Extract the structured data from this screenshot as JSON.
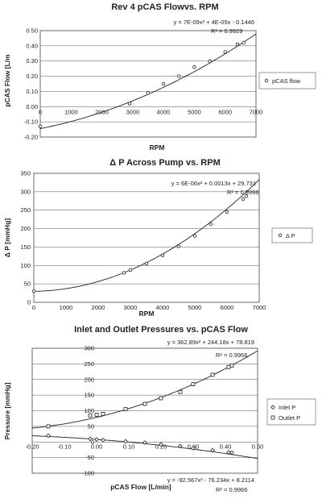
{
  "chart_data": [
    {
      "type": "scatter",
      "title": "Rev 4 pCAS Flowvs. RPM",
      "xlabel": "RPM",
      "ylabel": "pCAS Flow [L/m",
      "xlim": [
        0,
        7000
      ],
      "ylim": [
        -0.2,
        0.5
      ],
      "xticks": [
        "0",
        "1000",
        "2000",
        "3000",
        "4000",
        "5000",
        "6000",
        "7000"
      ],
      "yticks": [
        "0.50",
        "0.40",
        "0.30",
        "0.20",
        "0.10",
        "0.00",
        "-0.10",
        "-0.20"
      ],
      "grid": true,
      "legend_position": "right",
      "trendline": {
        "a": 7e-09,
        "b": 4e-05,
        "c": -0.1446
      },
      "equation": "y = 7E-09x² + 4E-05x - 0.1446",
      "r2": "R² = 0.9929",
      "series": [
        {
          "name": "pCAS flow",
          "marker": "circle",
          "x": [
            0,
            2900,
            3500,
            4000,
            4500,
            5000,
            5500,
            6000,
            6400,
            6600
          ],
          "y": [
            -0.13,
            0.02,
            0.09,
            0.15,
            0.2,
            0.26,
            0.3,
            0.36,
            0.41,
            0.42
          ]
        }
      ]
    },
    {
      "type": "scatter",
      "title": "Δ P Across Pump vs. RPM",
      "xlabel": "RPM",
      "ylabel": "Δ P [mmHg]",
      "xlim": [
        0,
        7000
      ],
      "ylim": [
        0,
        350
      ],
      "xticks": [
        "0",
        "1000",
        "2000",
        "3000",
        "4000",
        "5000",
        "6000",
        "7000"
      ],
      "yticks": [
        "350",
        "300",
        "250",
        "200",
        "150",
        "100",
        "50",
        "0"
      ],
      "grid": true,
      "legend_position": "right",
      "trendline": {
        "a": 6e-06,
        "b": 0.0013,
        "c": 29.731
      },
      "equation": "y = 6E-06x² + 0.0013x + 29.731",
      "r2": "R² = 0.9998",
      "series": [
        {
          "name": "Δ P",
          "marker": "circle",
          "x": [
            0,
            2800,
            3000,
            3500,
            4000,
            4500,
            5000,
            5500,
            6000,
            6500,
            6600
          ],
          "y": [
            30,
            80,
            88,
            105,
            127,
            152,
            180,
            212,
            245,
            280,
            288
          ]
        }
      ]
    },
    {
      "type": "scatter",
      "title": "Inlet and Outlet Pressures vs. pCAS Flow",
      "xlabel": "pCAS Flow [L/min]",
      "ylabel": "Pressure [mmHg]",
      "xlim": [
        -0.2,
        0.5
      ],
      "ylim": [
        -100,
        300
      ],
      "xticks": [
        "-0.20",
        "-0.10",
        "0.00",
        "0.10",
        "0.20",
        "0.30",
        "0.40",
        "0.50"
      ],
      "yticks": [
        "300",
        "250",
        "200",
        "150",
        "100",
        "50",
        "0",
        "-50",
        "-100"
      ],
      "grid": true,
      "legend_position": "right",
      "series": [
        {
          "name": "Inlet P",
          "marker": "diamond",
          "x": [
            -0.15,
            -0.02,
            0.0,
            0.02,
            0.09,
            0.15,
            0.2,
            0.26,
            0.3,
            0.36,
            0.41,
            0.42
          ],
          "y": [
            20,
            10,
            8,
            6,
            2,
            -2,
            -8,
            -13,
            -20,
            -26,
            -33,
            -34
          ],
          "trendline": {
            "a": -92.567,
            "b": -76.234,
            "c": 8.2114
          },
          "equation": "y = -92.567x² - 76.234x + 8.2114",
          "r2": "R² = 0.9966"
        },
        {
          "name": "Outlet P",
          "marker": "square",
          "x": [
            -0.15,
            -0.02,
            0.0,
            0.02,
            0.09,
            0.15,
            0.2,
            0.26,
            0.3,
            0.36,
            0.41,
            0.42
          ],
          "y": [
            50,
            85,
            87,
            90,
            105,
            122,
            140,
            160,
            185,
            215,
            240,
            245
          ],
          "trendline": {
            "a": 362.89,
            "b": 244.18,
            "c": 78.819
          },
          "equation": "y = 362.89x² + 244.18x + 78.819",
          "r2": "R² = 0.9966"
        }
      ]
    }
  ]
}
